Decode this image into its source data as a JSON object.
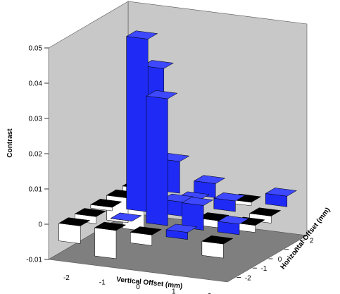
{
  "chart_data": {
    "type": "bar3d",
    "zlabel": "Contrast",
    "xlabel": "Vertical Offset (mm)",
    "ylabel": "Horizontal Offset (mm)",
    "zlim": [
      -0.01,
      0.05
    ],
    "z_ticks": [
      "-0.01",
      "0",
      "0.01",
      "0.02",
      "0.03",
      "0.04",
      "0.05"
    ],
    "x_categories": [
      "-2",
      "-1",
      "0",
      "1",
      "2"
    ],
    "y_categories": [
      "-2",
      "-1",
      "0",
      "1",
      "2"
    ],
    "x_values": [
      -2,
      -1,
      0,
      1,
      2
    ],
    "y_values": [
      -2,
      -1,
      0,
      1,
      2
    ],
    "grid": false,
    "colors": {
      "positive": "#1f2bf5",
      "negative": "#ffffff",
      "floor": "#7f7f7f",
      "wall": "#c8c8c8"
    },
    "values": [
      [
        -0.005,
        -0.008,
        -0.003,
        0.002,
        -0.004
      ],
      [
        -0.002,
        0.0,
        0.036,
        0.007,
        0.003
      ],
      [
        -0.001,
        0.049,
        0.004,
        -0.002,
        -0.002
      ],
      [
        -0.007,
        0.038,
        0.002,
        0.003,
        -0.002
      ],
      [
        -0.012,
        0.009,
        0.004,
        -0.001,
        0.003
      ]
    ]
  }
}
